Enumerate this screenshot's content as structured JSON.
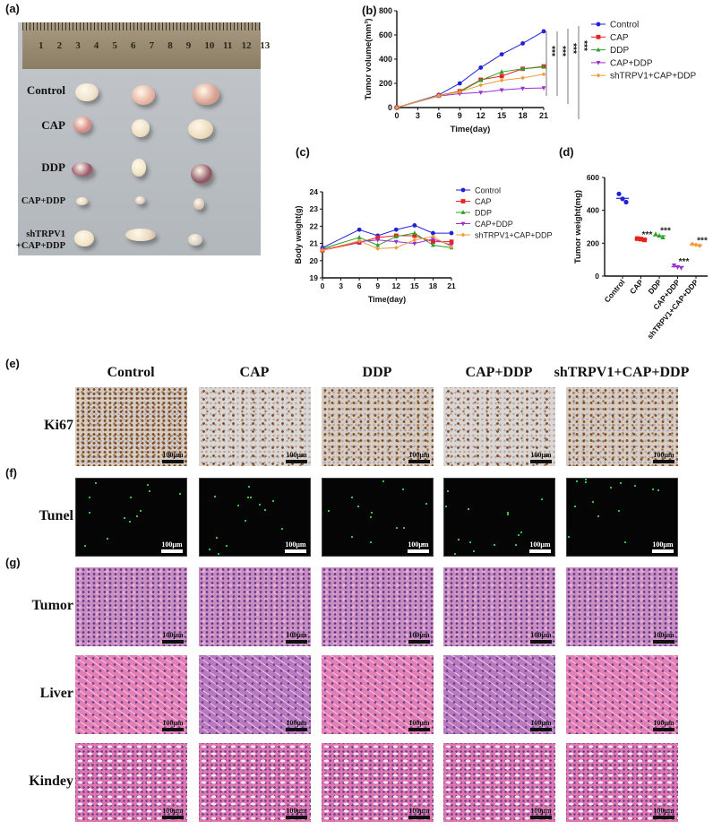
{
  "panel_labels": {
    "a": "(a)",
    "b": "(b)",
    "c": "(c)",
    "d": "(d)",
    "e": "(e)",
    "f": "(f)",
    "g": "(g)"
  },
  "photo": {
    "ruler_numbers": [
      "1",
      "2",
      "3",
      "4",
      "5",
      "6",
      "7",
      "8",
      "9",
      "10",
      "11",
      "12",
      "13"
    ],
    "rows": [
      {
        "label": "Control"
      },
      {
        "label": "CAP"
      },
      {
        "label": "DDP"
      },
      {
        "label": "CAP+DDP"
      },
      {
        "label": "shTRPV1",
        "label2": "+CAP+DDP"
      }
    ]
  },
  "colors": {
    "Control": "#1f22d6",
    "CAP": "#e8221f",
    "DDP": "#2ca02c",
    "CAP+DDP": "#9b30d0",
    "shTRPV1+CAP+DDP": "#f39a3a"
  },
  "chart_data": [
    {
      "panel": "b",
      "type": "line",
      "xlabel": "Time(day)",
      "ylabel": "Tumor volume(mm³)",
      "x": [
        0,
        6,
        9,
        12,
        15,
        18,
        21
      ],
      "xticks": [
        0,
        3,
        6,
        9,
        12,
        15,
        18,
        21
      ],
      "yticks": [
        0,
        200,
        400,
        600,
        800
      ],
      "xlim": [
        0,
        21
      ],
      "ylim": [
        0,
        800
      ],
      "legend": "right",
      "series": [
        {
          "name": "Control",
          "marker": "circle",
          "values": [
            0,
            105,
            200,
            330,
            440,
            530,
            630
          ]
        },
        {
          "name": "CAP",
          "marker": "square",
          "values": [
            0,
            100,
            135,
            230,
            260,
            320,
            340
          ]
        },
        {
          "name": "DDP",
          "marker": "triangle-up",
          "values": [
            0,
            100,
            130,
            225,
            295,
            320,
            335
          ]
        },
        {
          "name": "CAP+DDP",
          "marker": "triangle-down",
          "values": [
            0,
            95,
            115,
            125,
            145,
            158,
            162
          ]
        },
        {
          "name": "shTRPV1+CAP+DDP",
          "marker": "diamond",
          "values": [
            0,
            98,
            130,
            185,
            225,
            245,
            275
          ]
        }
      ],
      "annotations": [
        "***",
        "***",
        "***",
        "***"
      ]
    },
    {
      "panel": "c",
      "type": "line",
      "xlabel": "Time(day)",
      "ylabel": "Body  weight(g)",
      "x": [
        0,
        6,
        9,
        12,
        15,
        18,
        21
      ],
      "xticks": [
        0,
        3,
        6,
        9,
        12,
        15,
        18,
        21
      ],
      "yticks": [
        19,
        20,
        21,
        22,
        23,
        24
      ],
      "xlim": [
        0,
        21
      ],
      "ylim": [
        19,
        24
      ],
      "legend": "right",
      "series": [
        {
          "name": "Control",
          "marker": "circle",
          "values": [
            20.75,
            21.8,
            21.45,
            21.8,
            22.05,
            21.6,
            21.6
          ]
        },
        {
          "name": "CAP",
          "marker": "square",
          "values": [
            20.6,
            21.05,
            21.35,
            21.45,
            21.45,
            21.1,
            21.1
          ]
        },
        {
          "name": "DDP",
          "marker": "triangle-up",
          "values": [
            20.7,
            21.35,
            20.9,
            21.4,
            21.6,
            20.9,
            20.75
          ]
        },
        {
          "name": "CAP+DDP",
          "marker": "triangle-down",
          "values": [
            20.65,
            21.1,
            21.2,
            21.1,
            21.0,
            21.25,
            20.9
          ]
        },
        {
          "name": "shTRPV1+CAP+DDP",
          "marker": "diamond",
          "values": [
            20.6,
            21.15,
            20.7,
            20.75,
            21.2,
            21.4,
            20.8
          ]
        }
      ]
    },
    {
      "panel": "d",
      "type": "scatter",
      "ylabel": "Tumor weight(mg)",
      "categories": [
        "Control",
        "CAP",
        "DDP",
        "CAP+DDP",
        "shTRPV1+CAP+DDP"
      ],
      "yticks": [
        0,
        200,
        400,
        600
      ],
      "ylim": [
        0,
        600
      ],
      "points": [
        [
          500,
          470,
          450
        ],
        [
          228,
          225,
          220
        ],
        [
          255,
          245,
          235
        ],
        [
          65,
          55,
          50
        ],
        [
          195,
          190,
          185
        ]
      ],
      "means": [
        473,
        224,
        245,
        57,
        190
      ],
      "annotations": [
        "",
        "***",
        "***",
        "***",
        "***"
      ]
    }
  ],
  "histology": {
    "columns": [
      "Control",
      "CAP",
      "DDP",
      "CAP+DDP",
      "shTRPV1+CAP+DDP"
    ],
    "rows": [
      "Ki67",
      "Tunel",
      "Tumor",
      "Liver",
      "Kindey"
    ],
    "scale_bar": "100μm"
  }
}
